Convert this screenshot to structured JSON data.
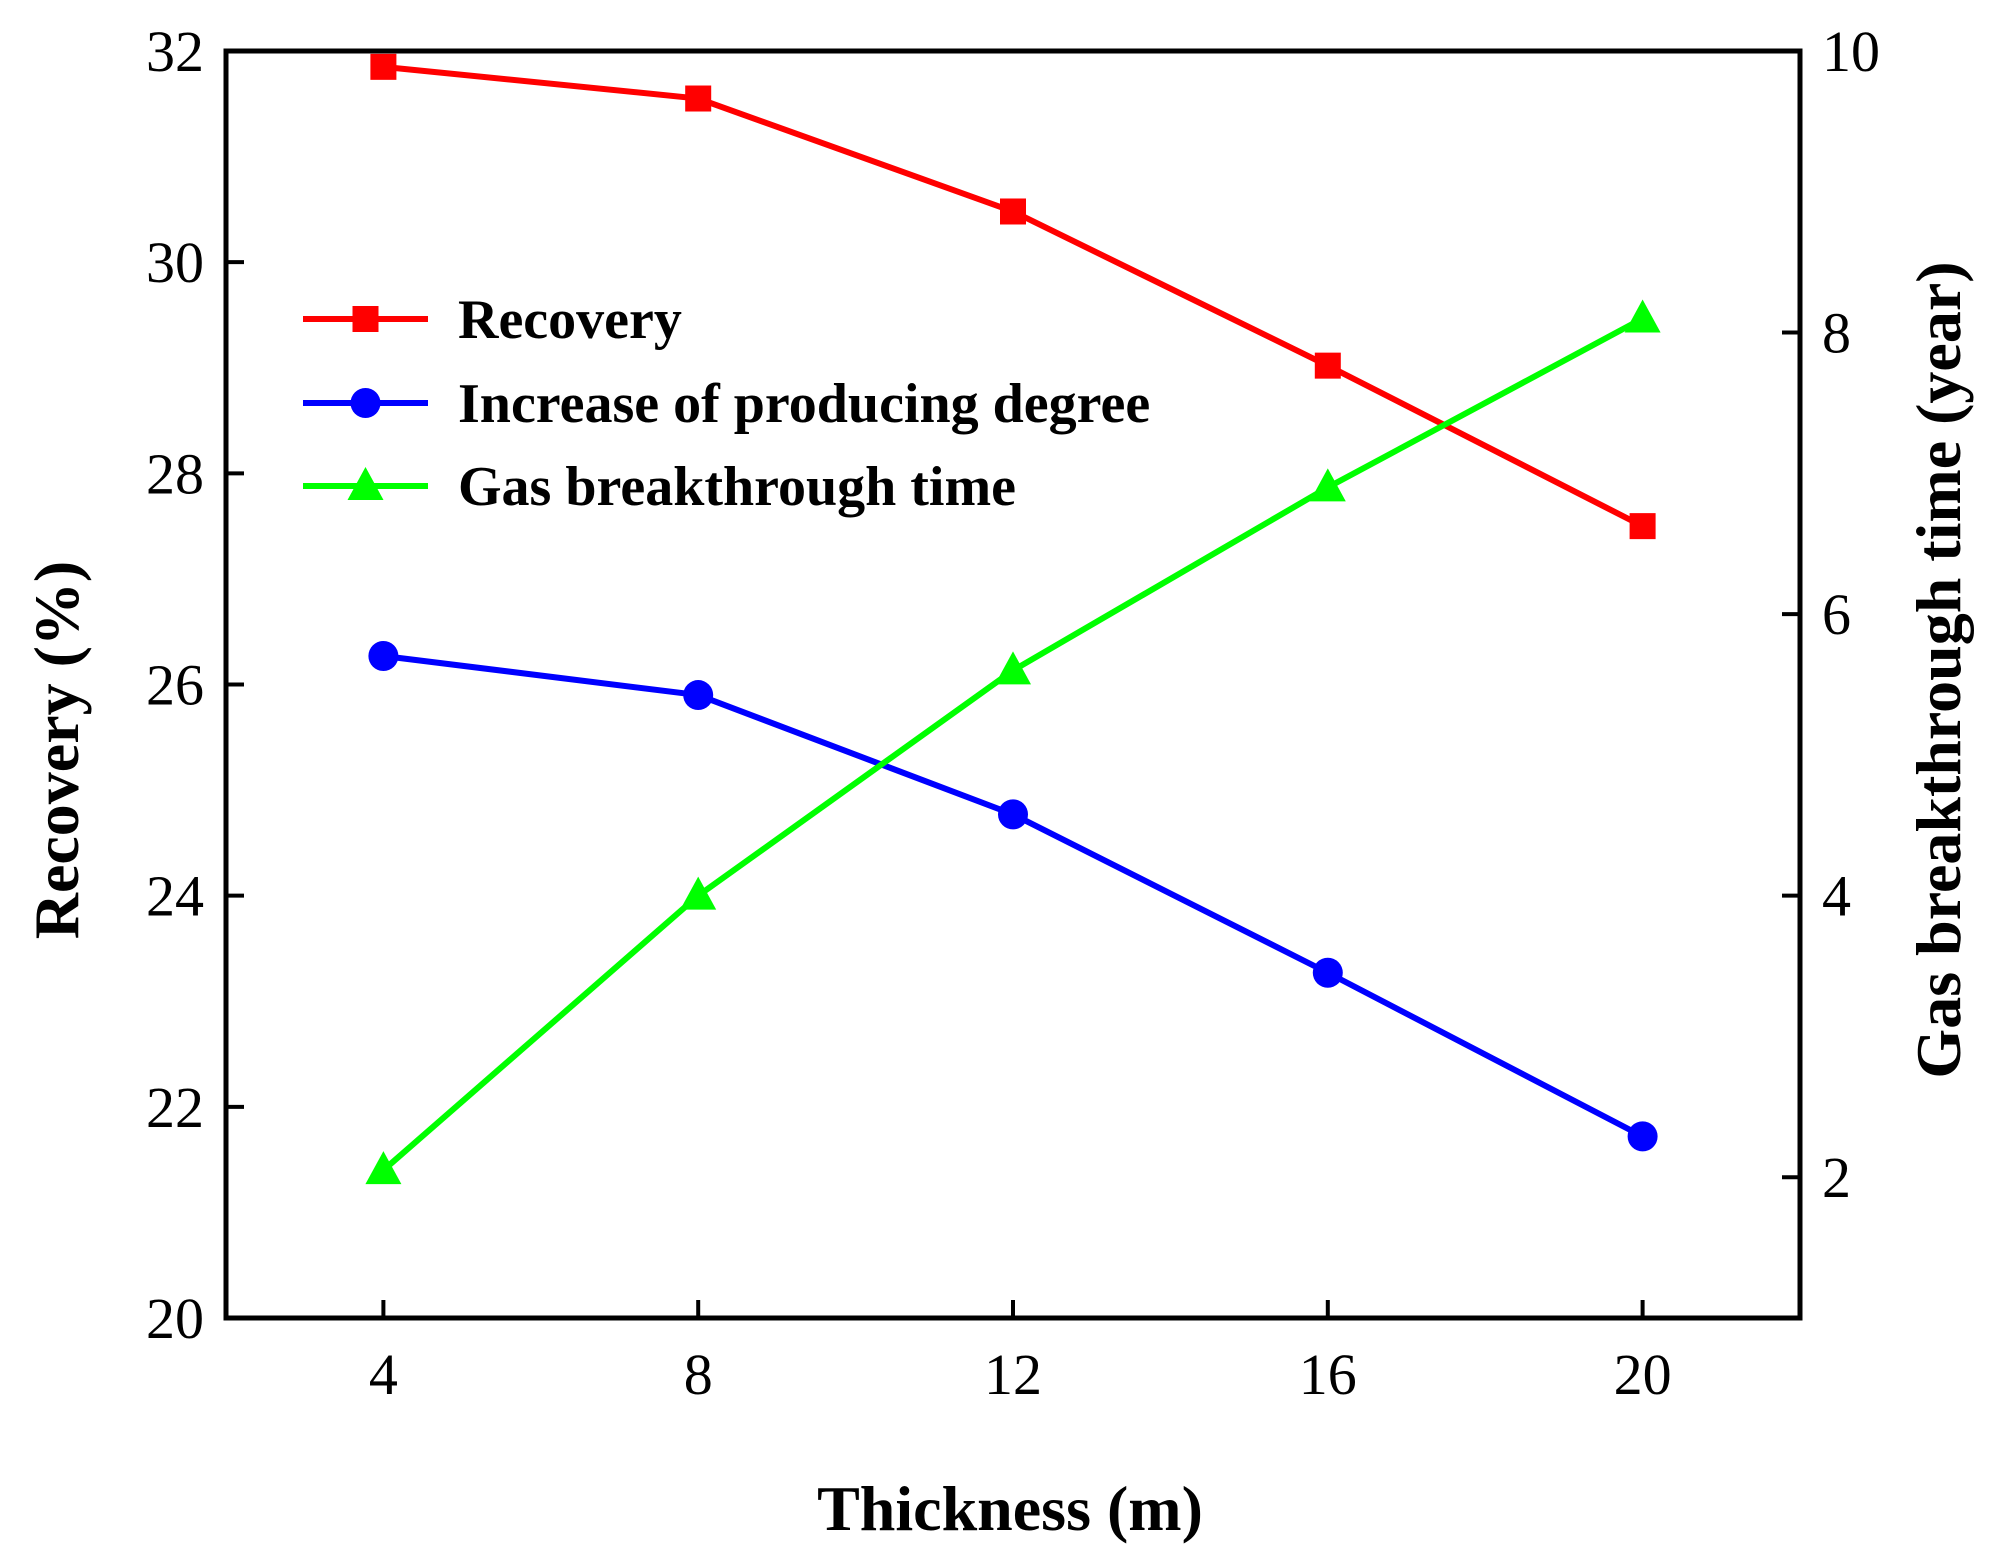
{
  "chart_data": {
    "type": "line",
    "x": [
      4,
      8,
      12,
      16,
      20
    ],
    "xlabel": "Thickness (m)",
    "ylabel": "Recovery (%)",
    "y2label": "Gas breakthrough time (year)",
    "xlim": [
      2,
      22
    ],
    "ylim": [
      20,
      32
    ],
    "y2lim": [
      1,
      10
    ],
    "xticks": [
      4,
      8,
      12,
      16,
      20
    ],
    "yticks": [
      20,
      22,
      24,
      26,
      28,
      30,
      32
    ],
    "y2ticks": [
      2,
      4,
      6,
      8,
      10
    ],
    "grid": false,
    "legend_position": "top-left",
    "series": [
      {
        "name": "Recovery",
        "axis": "left",
        "marker": "square",
        "color": "#ff0000",
        "values": [
          31.85,
          31.55,
          30.48,
          29.02,
          27.5
        ]
      },
      {
        "name": "Increase of producing degree",
        "axis": "left",
        "marker": "circle",
        "color": "#0000ff",
        "values": [
          26.27,
          25.9,
          24.77,
          23.27,
          21.72
        ]
      },
      {
        "name": "Gas breakthrough time",
        "axis": "right",
        "marker": "triangle",
        "color": "#00ff00",
        "values": [
          2.05,
          4.0,
          5.6,
          6.9,
          8.1
        ]
      }
    ]
  }
}
